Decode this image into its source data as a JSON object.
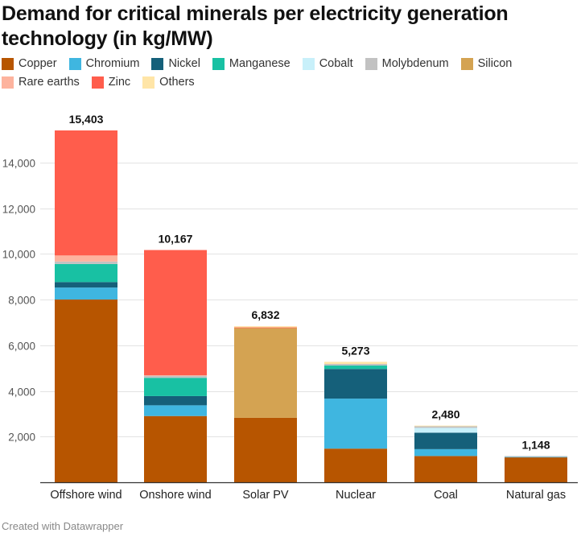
{
  "title": "Demand for critical minerals per electricity generation technology (in kg/MW)",
  "footer": "Created with Datawrapper",
  "chart_data": {
    "type": "bar",
    "stacked": true,
    "categories": [
      "Offshore wind",
      "Onshore wind",
      "Solar PV",
      "Nuclear",
      "Coal",
      "Natural gas"
    ],
    "totals": [
      "15,403",
      "10,167",
      "6,832",
      "5,273",
      "2,480",
      "1,148"
    ],
    "series": [
      {
        "name": "Copper",
        "color": "#b75500",
        "values": [
          8000,
          2900,
          2822,
          1473,
          1150,
          1100
        ]
      },
      {
        "name": "Chromium",
        "color": "#3fb6e0",
        "values": [
          525,
          470,
          0,
          2190,
          300,
          15
        ]
      },
      {
        "name": "Nickel",
        "color": "#15607a",
        "values": [
          240,
          404,
          0,
          1297,
          721,
          16
        ]
      },
      {
        "name": "Manganese",
        "color": "#18c1a3",
        "values": [
          790,
          800,
          0,
          150,
          0,
          0
        ]
      },
      {
        "name": "Cobalt",
        "color": "#c8f0fa",
        "values": [
          0,
          0,
          0,
          0,
          210,
          2
        ]
      },
      {
        "name": "Molybdenum",
        "color": "#c2c2c2",
        "values": [
          109,
          100,
          0,
          71,
          70,
          15
        ]
      },
      {
        "name": "Silicon",
        "color": "#d4a352",
        "values": [
          0,
          0,
          3930,
          0,
          0,
          0
        ]
      },
      {
        "name": "Rare earths",
        "color": "#fdb39e",
        "values": [
          265,
          14,
          0,
          0,
          0,
          0
        ]
      },
      {
        "name": "Zinc",
        "color": "#ff5d4c",
        "values": [
          5474,
          5479,
          30,
          0,
          0,
          0
        ]
      },
      {
        "name": "Others",
        "color": "#ffe5a7",
        "values": [
          0,
          0,
          50,
          92,
          29,
          0
        ]
      }
    ],
    "y_ticks": [
      2000,
      4000,
      6000,
      8000,
      10000,
      12000,
      14000
    ],
    "y_tick_labels": [
      "2,000",
      "4,000",
      "6,000",
      "8,000",
      "10,000",
      "12,000",
      "14,000"
    ],
    "ylim": [
      0,
      15403
    ],
    "grid": true,
    "legend_position": "top-left"
  }
}
